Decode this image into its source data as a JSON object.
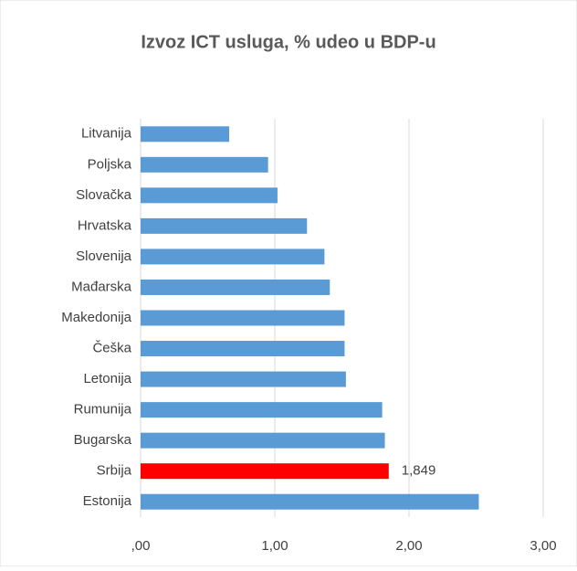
{
  "chart_data": {
    "type": "barh",
    "title": "Izvoz ICT usluga, % udeo u BDP-u",
    "categories": [
      "Litvanija",
      "Poljska",
      "Slovačka",
      "Hrvatska",
      "Slovenija",
      "Mađarska",
      "Makedonija",
      "Češka",
      "Letonija",
      "Rumunija",
      "Bugarska",
      "Srbija",
      "Estonija"
    ],
    "values": [
      0.66,
      0.95,
      1.02,
      1.24,
      1.37,
      1.41,
      1.52,
      1.52,
      1.53,
      1.8,
      1.82,
      1.849,
      2.52
    ],
    "value_labels": [
      null,
      null,
      null,
      null,
      null,
      null,
      null,
      null,
      null,
      null,
      null,
      "1,849",
      null
    ],
    "colors": [
      "#5b9bd5",
      "#5b9bd5",
      "#5b9bd5",
      "#5b9bd5",
      "#5b9bd5",
      "#5b9bd5",
      "#5b9bd5",
      "#5b9bd5",
      "#5b9bd5",
      "#5b9bd5",
      "#5b9bd5",
      "#ff0000",
      "#5b9bd5"
    ],
    "xlim": [
      0,
      3
    ],
    "xticks": [
      {
        "value": 0,
        "label": ",00"
      },
      {
        "value": 1,
        "label": "1,00"
      },
      {
        "value": 2,
        "label": "2,00"
      },
      {
        "value": 3,
        "label": "3,00"
      }
    ],
    "grid": true
  }
}
